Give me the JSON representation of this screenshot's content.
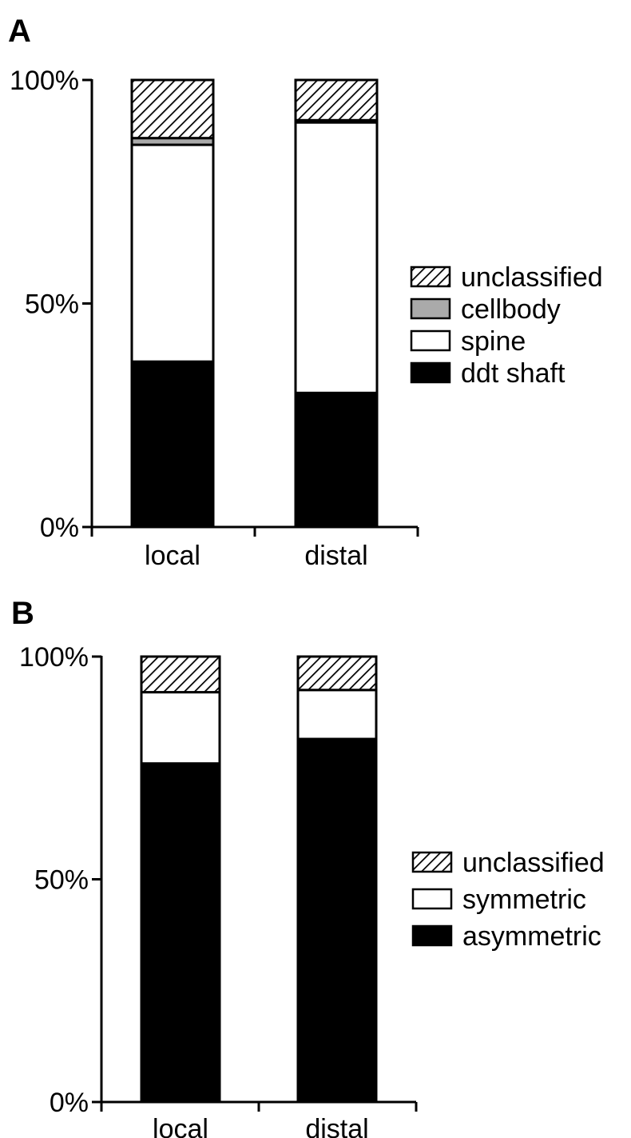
{
  "chart_data": [
    {
      "panel": "A",
      "type": "bar",
      "stacked": true,
      "categories": [
        "local",
        "distal"
      ],
      "ylim": [
        0,
        100
      ],
      "yticks": [
        "0%",
        "50%",
        "100%"
      ],
      "grid": false,
      "legend": "right",
      "series": [
        {
          "name": "ddt shaft",
          "values": [
            37,
            30
          ],
          "fill": "#000000"
        },
        {
          "name": "spine",
          "values": [
            48.5,
            60.5
          ],
          "fill": "#ffffff"
        },
        {
          "name": "cellbody",
          "values": [
            1.5,
            0.5
          ],
          "fill": "#aaaaaa"
        },
        {
          "name": "unclassified",
          "values": [
            13,
            9
          ],
          "fill": "hatch"
        }
      ]
    },
    {
      "panel": "B",
      "type": "bar",
      "stacked": true,
      "categories": [
        "local",
        "distal"
      ],
      "ylim": [
        0,
        100
      ],
      "yticks": [
        "0%",
        "50%",
        "100%"
      ],
      "grid": false,
      "legend": "right",
      "series": [
        {
          "name": "asymmetric",
          "values": [
            76,
            81.5
          ],
          "fill": "#000000"
        },
        {
          "name": "symmetric",
          "values": [
            16,
            11
          ],
          "fill": "#ffffff"
        },
        {
          "name": "unclassified",
          "values": [
            8,
            7.5
          ],
          "fill": "hatch"
        }
      ]
    }
  ]
}
